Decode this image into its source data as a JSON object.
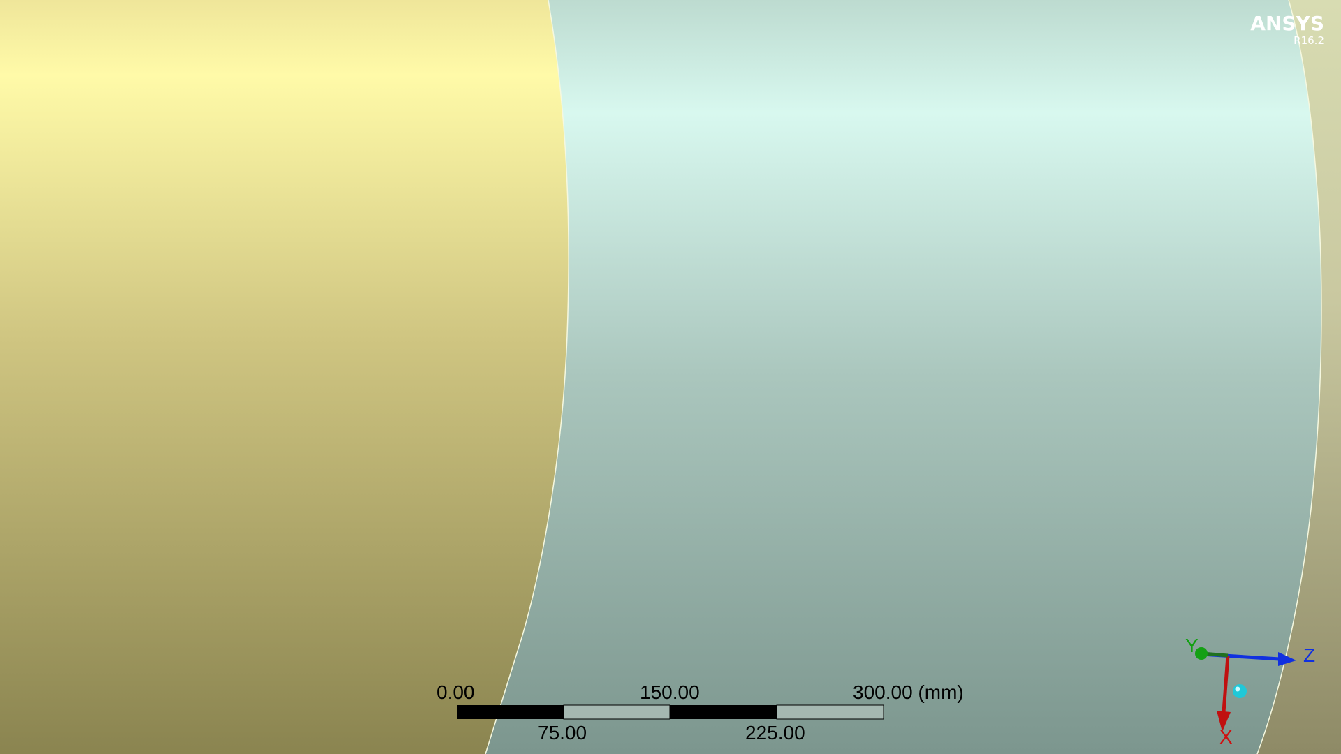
{
  "logo": {
    "name": "ANSYS",
    "version": "R16.2"
  },
  "scale_bar": {
    "top_labels": [
      "0.00",
      "150.00",
      "300.00 (mm)"
    ],
    "bottom_labels": [
      "75.00",
      "225.00"
    ]
  },
  "triad": {
    "x_label": "X",
    "y_label": "Y",
    "z_label": "Z",
    "x_color": "#d01010",
    "y_color": "#10a010",
    "z_color": "#1030e0",
    "iso_color": "#20c8d8"
  },
  "colors": {
    "yellow_body_top": "#fffaa8",
    "yellow_body_bottom": "#8a8450",
    "teal_body_top": "#d6f7ee",
    "teal_body_bottom": "#7c968e",
    "edge_color": "#f5f8e0"
  }
}
